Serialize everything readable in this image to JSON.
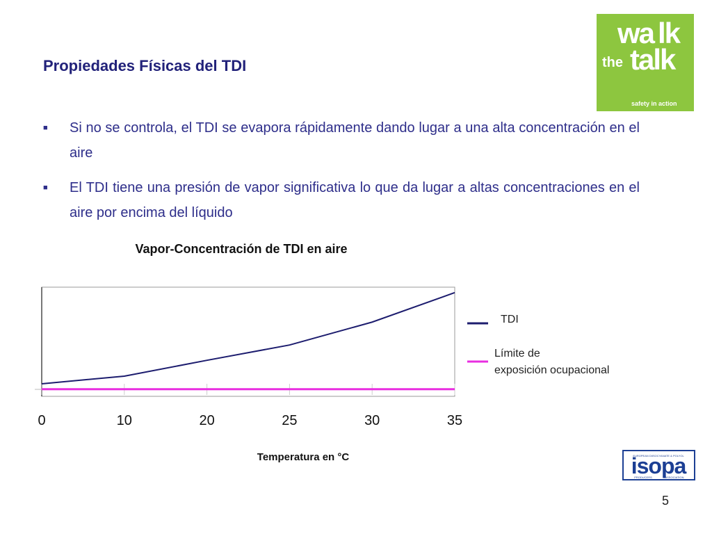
{
  "header": {
    "title": "Propiedades Físicas del TDI"
  },
  "bullets": [
    "Si no se controla, el TDI se evapora rápidamente dando lugar a una alta concentración en el aire",
    "El TDI tiene una presión de vapor significativa lo que da lugar a altas concentraciones en el aire por encima del líquido"
  ],
  "logo_top": {
    "words": [
      "wa",
      "lk",
      "the",
      "talk"
    ],
    "tagline": "safety in action"
  },
  "logo_bottom": {
    "name": "isopa",
    "line1": "EUROPEAN DIISOCYANATE & POLYOL",
    "line2": "PRODUCERS",
    "line3": "ASSOCIATION"
  },
  "page_number": "5",
  "chart_data": {
    "type": "line",
    "title": "Vapor-Concentración de TDI en aire",
    "x_label": "Temperatura en °C",
    "categories": [
      "0",
      "10",
      "20",
      "25",
      "30",
      "35"
    ],
    "series": [
      {
        "name": "TDI",
        "color": "#1c1c6e",
        "values": [
          11.5,
          18.5,
          33,
          47,
          68,
          95
        ]
      },
      {
        "name": "Límite de\nexposición ocupacional",
        "color": "#e82ee0",
        "values": [
          6.5,
          6.5,
          6.5,
          6.5,
          6.5,
          6.5
        ]
      }
    ],
    "ylim": [
      0,
      100
    ],
    "legend": "right"
  }
}
